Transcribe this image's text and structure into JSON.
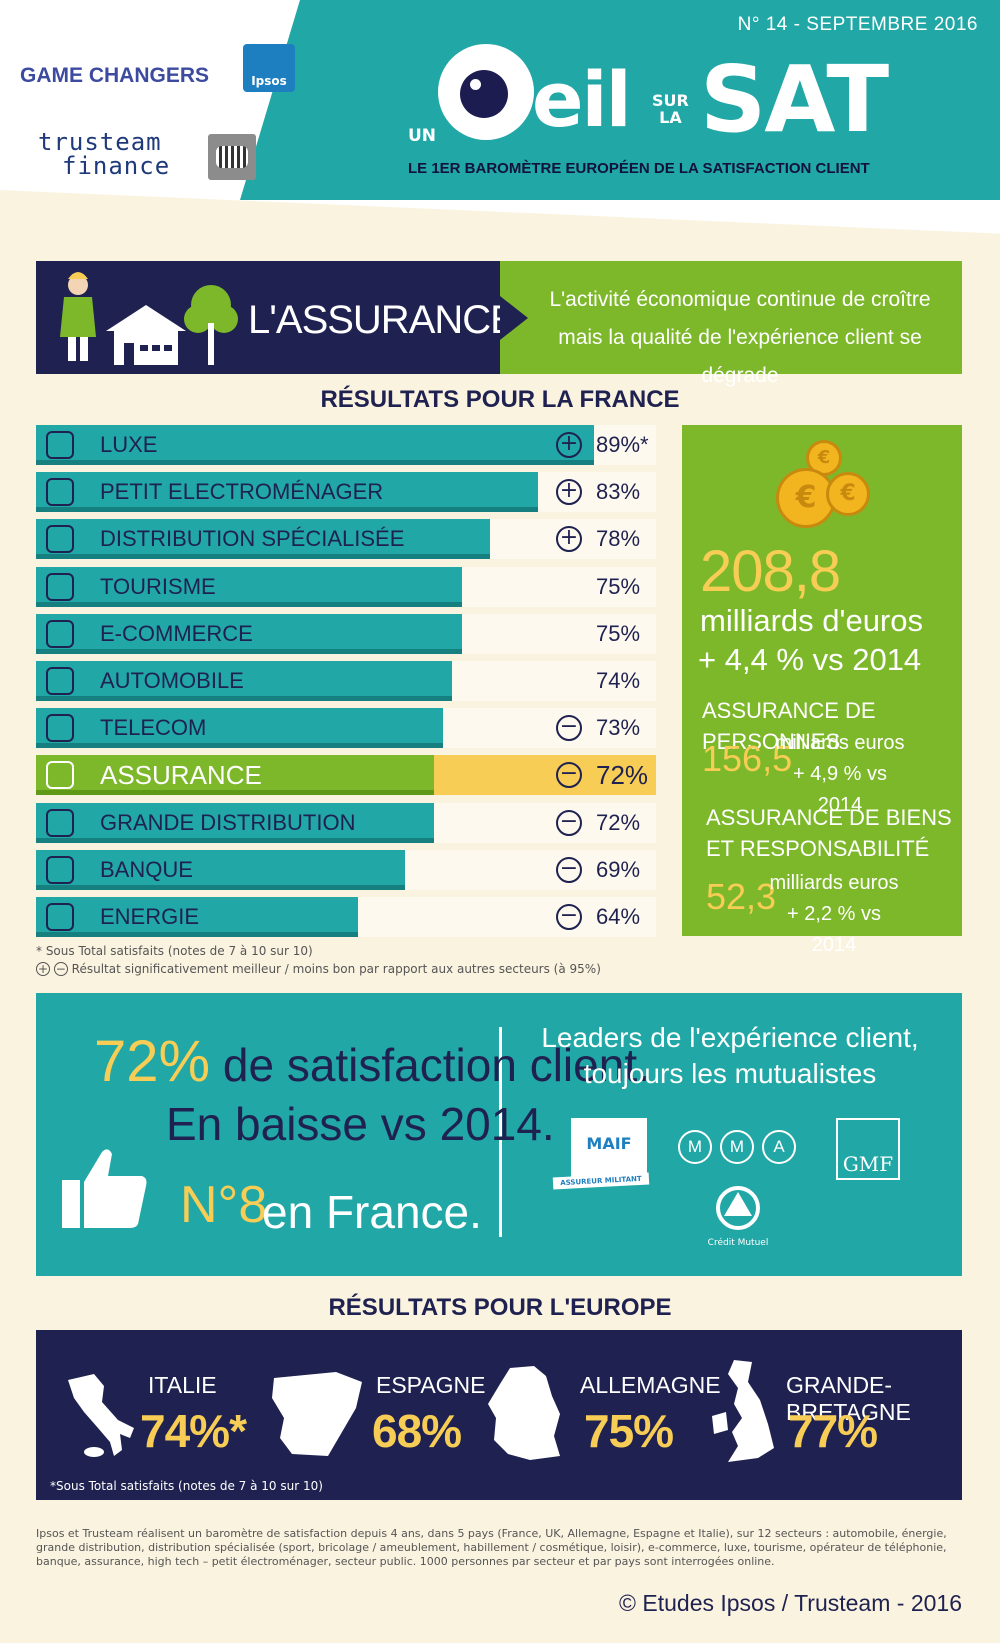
{
  "header": {
    "issue": "N° 14 - SEPTEMBRE 2016",
    "game_changers": "GAME CHANGERS",
    "ipsos": "Ipsos",
    "trusteam_line1": "trusteam",
    "trusteam_line2": "finance",
    "brand_un": "UN",
    "brand_oeil": "eil",
    "brand_sur": "SUR",
    "brand_la": "LA",
    "brand_sat": "SAT",
    "tagline": "LE 1ER BAROMÈTRE EUROPÉEN DE LA SATISFACTION CLIENT"
  },
  "sector": {
    "title": "L'ASSURANCE",
    "message_line1": "L'activité économique continue de croître",
    "message_line2": "mais la qualité de l'expérience client se dégrade"
  },
  "france_heading": "RÉSULTATS POUR LA FRANCE",
  "chart_data": {
    "type": "bar",
    "orientation": "horizontal",
    "title": "RÉSULTATS POUR LA FRANCE",
    "categories": [
      "LUXE",
      "PETIT ELECTROMÉNAGER",
      "DISTRIBUTION SPÉCIALISÉE",
      "TOURISME",
      "E-COMMERCE",
      "AUTOMOBILE",
      "TELECOM",
      "ASSURANCE",
      "GRANDE DISTRIBUTION",
      "BANQUE",
      "ENERGIE"
    ],
    "values": [
      89,
      83,
      78,
      75,
      75,
      74,
      73,
      72,
      72,
      69,
      64
    ],
    "value_labels": [
      "89%*",
      "83%",
      "78%",
      "75%",
      "75%",
      "74%",
      "73%",
      "72%",
      "72%",
      "69%",
      "64%"
    ],
    "significance": [
      "+",
      "+",
      "+",
      "",
      "",
      "",
      "-",
      "-",
      "-",
      "-",
      "-"
    ],
    "icons": [
      "diamond-icon",
      "blender-icon",
      "storefront-icon",
      "plane-icon",
      "basket-icon",
      "car-icon",
      "phone-icon",
      "globe-icon",
      "cart-icon",
      "bank-icon",
      "atom-icon"
    ],
    "highlight": "ASSURANCE",
    "unit": "%",
    "xlim": [
      0,
      100
    ],
    "colors": {
      "bar": "#20a7a6",
      "highlight_bar": "#7db82a",
      "highlight_bg": "#f7cd55"
    }
  },
  "notes": {
    "subtotal": "* Sous Total satisfaits (notes de 7 à 10 sur 10)",
    "significance": "Résultat significativement meilleur / moins bon par rapport aux autres secteurs (à 95%)"
  },
  "figures": {
    "coin_symbol": "€",
    "main_value": "208,8",
    "main_unit": "milliards d'euros",
    "main_change": "+ 4,4 % vs 2014",
    "persons_title": "ASSURANCE DE PERSONNES",
    "persons_value": "156,5",
    "persons_unit": "milliards euros",
    "persons_change": "+ 4,9 % vs 2014",
    "goods_title_line1": "ASSURANCE DE BIENS",
    "goods_title_line2": "ET RESPONSABILITÉ",
    "goods_value": "52,3",
    "goods_unit": "milliards euros",
    "goods_change": "+ 2,2 % vs 2014"
  },
  "satisfaction": {
    "pct": "72%",
    "line1_rest": " de satisfaction client.",
    "line2": "En baisse vs 2014.",
    "rank": "N°8",
    "rank_rest": "en France.",
    "leaders_line1": "Leaders de l'expérience client,",
    "leaders_line2": "toujours les mutualistes",
    "maif": "MAIF",
    "maif_sub": "ASSUREUR MILITANT",
    "mma": [
      "M",
      "M",
      "A"
    ],
    "gmf": "GMF",
    "credit_mutuel": "Crédit Mutuel"
  },
  "europe_heading": "RÉSULTATS POUR L'EUROPE",
  "europe": [
    {
      "name": "ITALIE",
      "value": "74%*"
    },
    {
      "name": "ESPAGNE",
      "value": "68%"
    },
    {
      "name": "ALLEMAGNE",
      "value": "75%"
    },
    {
      "name": "GRANDE-BRETAGNE",
      "value": "77%"
    }
  ],
  "europe_note": "*Sous Total satisfaits (notes de 7 à 10 sur 10)",
  "methodology": "Ipsos et Trusteam réalisent un baromètre de satisfaction depuis 4 ans, dans 5 pays (France, UK, Allemagne, Espagne et Italie), sur 12 secteurs : automobile, énergie, grande distribution, distribution spécialisée (sport, bricolage / ameublement, habillement / cosmétique, loisir), e-commerce, luxe, tourisme, opérateur de téléphonie, banque, assurance, high tech – petit électroménager, secteur public. 1000 personnes par secteur et par pays sont interrogées online.",
  "copyright": "© Etudes Ipsos / Trusteam - 2016"
}
